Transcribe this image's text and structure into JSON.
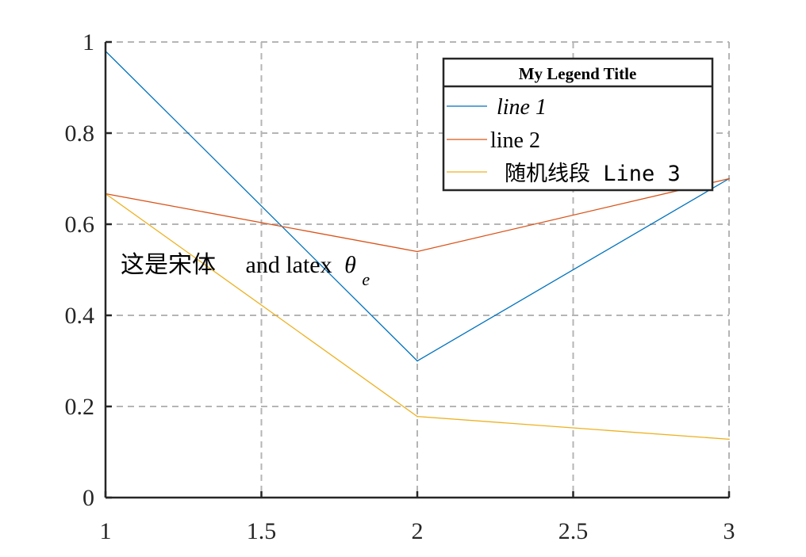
{
  "chart_data": {
    "type": "line",
    "x": [
      1,
      2,
      3
    ],
    "xlim": [
      1,
      3
    ],
    "ylim": [
      0,
      1
    ],
    "xticks": [
      1,
      1.5,
      2,
      2.5,
      3
    ],
    "yticks": [
      0,
      0.2,
      0.4,
      0.6,
      0.8,
      1
    ],
    "xtick_labels": [
      "1",
      "1.5",
      "2",
      "2.5",
      "3"
    ],
    "ytick_labels": [
      "0",
      "0.2",
      "0.4",
      "0.6",
      "0.8",
      "1"
    ],
    "grid": true,
    "grid_style": "dashed",
    "series": [
      {
        "name": "line 1",
        "values": [
          0.98,
          0.3,
          0.7
        ],
        "color": "#0072BD"
      },
      {
        "name": "line 2",
        "values": [
          0.667,
          0.54,
          0.7
        ],
        "color": "#D95319"
      },
      {
        "name": "随机线段 Line 3",
        "values": [
          0.667,
          0.178,
          0.128
        ],
        "color": "#EDB120"
      }
    ],
    "legend": {
      "title": "My Legend Title",
      "placement": "top-right",
      "entries": [
        "line 1",
        "line 2",
        "随机线段 Line 3"
      ]
    },
    "annotation": {
      "text_cjk": "这是宋体",
      "text_latin": "and latex",
      "symbol": "θ",
      "subscript": "e",
      "x": 1.05,
      "y": 0.51
    }
  }
}
